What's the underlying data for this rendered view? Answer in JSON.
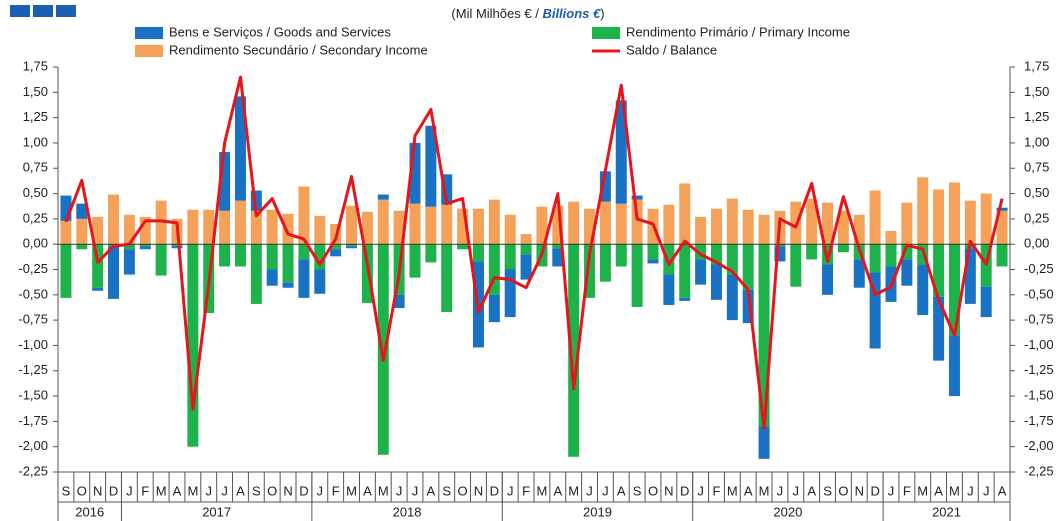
{
  "chart_data": {
    "type": "bar",
    "units": [
      "(Mil Milhões € / ",
      "Billions  €",
      ")"
    ],
    "categories": [
      "S",
      "O",
      "N",
      "D",
      "J",
      "F",
      "M",
      "A",
      "M",
      "J",
      "J",
      "A",
      "S",
      "O",
      "N",
      "D",
      "J",
      "F",
      "M",
      "A",
      "M",
      "J",
      "J",
      "A",
      "S",
      "O",
      "N",
      "D",
      "J",
      "F",
      "M",
      "A",
      "M",
      "J",
      "J",
      "A",
      "S",
      "O",
      "N",
      "D",
      "J",
      "F",
      "M",
      "A",
      "M",
      "J",
      "J",
      "A",
      "S",
      "O",
      "N",
      "D",
      "J",
      "F",
      "M",
      "A",
      "M",
      "J",
      "J",
      "A"
    ],
    "years": [
      "2016",
      "2017",
      "2018",
      "2019",
      "2020",
      "2021"
    ],
    "series": [
      {
        "name": "Bens e Serviços / Goods and Services",
        "type": "bar",
        "color": "#1a72c4",
        "values": [
          0.25,
          0.15,
          -0.03,
          -0.52,
          -0.25,
          -0.03,
          0,
          -0.02,
          0,
          0,
          0.58,
          1.03,
          0.2,
          -0.16,
          -0.05,
          -0.38,
          -0.24,
          -0.07,
          -0.02,
          0,
          0.05,
          -0.13,
          0.6,
          0.8,
          0.3,
          0,
          -0.85,
          -0.27,
          -0.47,
          -0.25,
          0,
          -0.18,
          0,
          0,
          0.3,
          1.02,
          0.04,
          -0.04,
          -0.3,
          -0.03,
          -0.25,
          -0.35,
          -0.45,
          -0.33,
          -0.32,
          -0.15,
          0,
          0,
          -0.3,
          0,
          -0.28,
          -0.75,
          -0.35,
          -0.26,
          -0.5,
          -0.63,
          -0.6,
          -0.55,
          -0.3,
          0.03
        ]
      },
      {
        "name": "Rendimento Primário / Primary Income",
        "type": "bar",
        "color": "#1db34a",
        "values": [
          -0.53,
          -0.05,
          -0.43,
          -0.02,
          -0.05,
          -0.02,
          -0.31,
          -0.02,
          -2.0,
          -0.68,
          -0.22,
          -0.22,
          -0.59,
          -0.25,
          -0.38,
          -0.15,
          -0.25,
          -0.05,
          -0.02,
          -0.58,
          -2.08,
          -0.5,
          -0.33,
          -0.18,
          -0.67,
          -0.05,
          -0.17,
          -0.5,
          -0.25,
          -0.1,
          -0.22,
          -0.04,
          -2.1,
          -0.53,
          -0.37,
          -0.22,
          -0.62,
          -0.15,
          -0.3,
          -0.53,
          -0.15,
          -0.2,
          -0.3,
          -0.45,
          -1.8,
          -0.02,
          -0.42,
          -0.15,
          -0.2,
          -0.08,
          -0.15,
          -0.28,
          -0.22,
          -0.15,
          -0.2,
          -0.52,
          -0.9,
          -0.04,
          -0.42,
          -0.22
        ]
      },
      {
        "name": "Rendimento Secundário / Secondary Income",
        "type": "bar",
        "color": "#f4a25a",
        "values": [
          0.23,
          0.25,
          0.27,
          0.49,
          0.29,
          0.27,
          0.43,
          0.25,
          0.34,
          0.34,
          0.33,
          0.43,
          0.33,
          0.34,
          0.3,
          0.57,
          0.28,
          0.2,
          0.38,
          0.32,
          0.44,
          0.33,
          0.4,
          0.37,
          0.39,
          0.35,
          0.35,
          0.44,
          0.29,
          0.1,
          0.37,
          0.38,
          0.42,
          0.35,
          0.42,
          0.4,
          0.44,
          0.35,
          0.39,
          0.6,
          0.27,
          0.35,
          0.45,
          0.34,
          0.29,
          0.33,
          0.42,
          0.45,
          0.41,
          0.33,
          0.29,
          0.53,
          0.13,
          0.41,
          0.66,
          0.54,
          0.61,
          0.43,
          0.5,
          0.33
        ]
      },
      {
        "name": "Saldo / Balance",
        "type": "line",
        "color": "#e8141c",
        "values": [
          0.22,
          0.63,
          -0.18,
          -0.02,
          0,
          0.23,
          0.23,
          0.21,
          -1.63,
          -0.4,
          1.0,
          1.65,
          0.28,
          0.45,
          0.1,
          0.05,
          -0.2,
          0.05,
          0.67,
          -0.2,
          -1.15,
          -0.3,
          1.07,
          1.33,
          0.4,
          0.45,
          -0.67,
          -0.33,
          -0.35,
          -0.43,
          -0.1,
          0.5,
          -1.43,
          -0.1,
          0.73,
          1.57,
          0.25,
          0.2,
          -0.2,
          0.03,
          -0.1,
          -0.18,
          -0.27,
          -0.45,
          -1.82,
          0.25,
          0.17,
          0.6,
          -0.17,
          0.47,
          -0.05,
          -0.5,
          -0.42,
          -0.01,
          -0.05,
          -0.55,
          -0.9,
          0.03,
          -0.2,
          0.45
        ]
      }
    ],
    "ylim": [
      -2.25,
      1.75
    ],
    "yticks": [
      {
        "value": 1.75,
        "label": "1,75"
      },
      {
        "value": 1.5,
        "label": "1,50"
      },
      {
        "value": 1.25,
        "label": "1,25"
      },
      {
        "value": 1,
        "label": "1,00"
      },
      {
        "value": 0.75,
        "label": "0,75"
      },
      {
        "value": 0.5,
        "label": "0,50"
      },
      {
        "value": 0.25,
        "label": "0,25"
      },
      {
        "value": 0,
        "label": "0,00"
      },
      {
        "value": -0.25,
        "label": "-0,25"
      },
      {
        "value": -0.5,
        "label": "-0,50"
      },
      {
        "value": -0.75,
        "label": "-0,75"
      },
      {
        "value": -1,
        "label": "-1,00"
      },
      {
        "value": -1.25,
        "label": "-1,25"
      },
      {
        "value": -1.5,
        "label": "-1,50"
      },
      {
        "value": -1.75,
        "label": "-1,75"
      },
      {
        "value": -2,
        "label": "-2,00"
      },
      {
        "value": -2.25,
        "label": "-2,25"
      }
    ],
    "y2lim": [
      -2.25,
      1.75
    ],
    "y2ticks": [
      {
        "value": 1.75,
        "label": "1,75"
      },
      {
        "value": 1.5,
        "label": "1,50"
      },
      {
        "value": 1.25,
        "label": "1,25"
      },
      {
        "value": 1,
        "label": "1,00"
      },
      {
        "value": 0.75,
        "label": "0,75"
      },
      {
        "value": 0.5,
        "label": "0,50"
      },
      {
        "value": 0.25,
        "label": "0,25"
      },
      {
        "value": 0,
        "label": "0,00"
      },
      {
        "value": -0.25,
        "label": "-0,25"
      },
      {
        "value": -0.5,
        "label": "-0,50"
      },
      {
        "value": -0.75,
        "label": "-0,75"
      },
      {
        "value": -1,
        "label": "-1,00"
      },
      {
        "value": -1.25,
        "label": "-1,25"
      },
      {
        "value": -1.5,
        "label": "-1,50"
      },
      {
        "value": -1.75,
        "label": "-1,75"
      },
      {
        "value": -2,
        "label": "-2,00"
      },
      {
        "value": -2.25,
        "label": "-2,25"
      }
    ],
    "grid": false
  }
}
